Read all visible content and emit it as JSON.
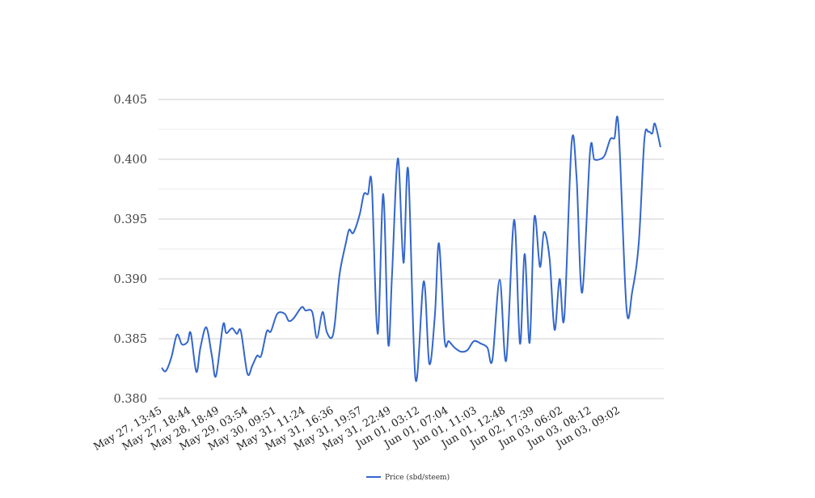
{
  "chart_data": {
    "type": "line",
    "title": "",
    "xlabel": "",
    "ylabel": "",
    "ylim": [
      0.38,
      0.405
    ],
    "y_ticks": [
      "0.380",
      "0.385",
      "0.390",
      "0.395",
      "0.400",
      "0.405"
    ],
    "y_minor_step": 0.0025,
    "grid": true,
    "legend_position": "bottom",
    "x_tick_labels": [
      "May 27, 13:45",
      "May 27, 18:44",
      "May 28, 18:49",
      "May 29, 03:54",
      "May 30, 09:51",
      "May 31, 11:24",
      "May 31, 16:36",
      "May 31, 19:57",
      "May 31, 22:49",
      "Jun 01, 03:12",
      "Jun 01, 07:04",
      "Jun 01, 11:03",
      "Jun 01, 12:48",
      "Jun 02, 17:39",
      "Jun 03, 06:02",
      "Jun 03, 08:12",
      "Jun 03, 09:02"
    ],
    "x_range": [
      0,
      17.3
    ],
    "series": [
      {
        "name": "Price (sbd/steem)",
        "color": "#3366cc",
        "x": [
          0,
          0.14,
          0.33,
          0.52,
          0.69,
          0.88,
          0.99,
          1.18,
          1.32,
          1.52,
          1.71,
          1.85,
          2.09,
          2.2,
          2.4,
          2.56,
          2.7,
          2.92,
          3.09,
          3.25,
          3.39,
          3.58,
          3.72,
          3.94,
          4.19,
          4.33,
          4.49,
          4.77,
          4.9,
          5.13,
          5.29,
          5.48,
          5.62,
          5.79,
          5.9,
          6.06,
          6.28,
          6.39,
          6.53,
          6.75,
          6.89,
          7.03,
          7.16,
          7.36,
          7.55,
          7.72,
          7.85,
          8.05,
          8.24,
          8.4,
          8.65,
          8.93,
          9.12,
          9.31,
          9.45,
          9.64,
          9.78,
          9.98,
          10.2,
          10.42,
          10.64,
          10.88,
          11.1,
          11.27,
          11.52,
          11.74,
          12.01,
          12.21,
          12.37,
          12.54,
          12.7,
          12.89,
          13.03,
          13.22,
          13.39,
          13.56,
          13.72,
          13.97,
          14.14,
          14.33,
          14.6,
          14.74,
          14.93,
          15.1,
          15.29,
          15.43,
          15.57,
          15.84,
          16.04,
          16.26,
          16.45,
          16.59,
          16.72,
          16.81,
          17
        ],
        "values": [
          0.38257,
          0.3823,
          0.38345,
          0.38534,
          0.38453,
          0.38473,
          0.38547,
          0.38223,
          0.38426,
          0.38595,
          0.38358,
          0.38189,
          0.38615,
          0.38547,
          0.38588,
          0.38541,
          0.38561,
          0.38209,
          0.38277,
          0.38358,
          0.38358,
          0.38561,
          0.38561,
          0.38709,
          0.38709,
          0.38649,
          0.38669,
          0.38764,
          0.38736,
          0.38723,
          0.38507,
          0.38723,
          0.38561,
          0.38507,
          0.38628,
          0.39034,
          0.39304,
          0.39412,
          0.39385,
          0.39541,
          0.39709,
          0.39709,
          0.39784,
          0.38541,
          0.39709,
          0.38459,
          0.39034,
          0.40007,
          0.39135,
          0.39912,
          0.38162,
          0.3898,
          0.38291,
          0.38696,
          0.39297,
          0.38493,
          0.3848,
          0.38426,
          0.38392,
          0.38405,
          0.3848,
          0.38459,
          0.38426,
          0.38324,
          0.38993,
          0.38318,
          0.39493,
          0.38459,
          0.39209,
          0.38466,
          0.39514,
          0.39101,
          0.39392,
          0.39169,
          0.38574,
          0.39,
          0.38676,
          0.40135,
          0.39845,
          0.38885,
          0.40068,
          0.4,
          0.4,
          0.40034,
          0.40169,
          0.40176,
          0.4027,
          0.38757,
          0.38899,
          0.39304,
          0.40162,
          0.4023,
          0.40216,
          0.40297,
          0.40101
        ]
      }
    ]
  }
}
